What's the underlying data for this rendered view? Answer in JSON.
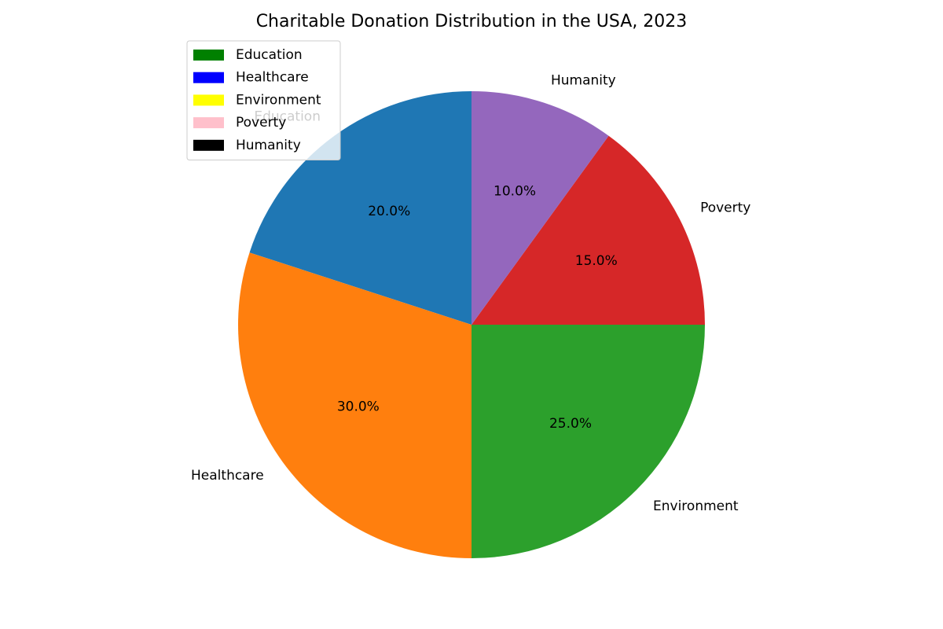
{
  "chart_data": {
    "type": "pie",
    "title": "Charitable Donation Distribution in the USA, 2023",
    "start_angle_deg": 90,
    "direction": "counterclockwise",
    "slices": [
      {
        "label": "Education",
        "value": 20,
        "pct_label": "20.0%",
        "color": "#1f77b4"
      },
      {
        "label": "Healthcare",
        "value": 30,
        "pct_label": "30.0%",
        "color": "#ff7f0e"
      },
      {
        "label": "Environment",
        "value": 25,
        "pct_label": "25.0%",
        "color": "#2ca02c"
      },
      {
        "label": "Poverty",
        "value": 15,
        "pct_label": "15.0%",
        "color": "#d62728"
      },
      {
        "label": "Humanity",
        "value": 10,
        "pct_label": "10.0%",
        "color": "#9467bd"
      }
    ],
    "legend": {
      "placement": "top-left",
      "entries": [
        {
          "label": "Education",
          "color": "#008000"
        },
        {
          "label": "Healthcare",
          "color": "#0000ff"
        },
        {
          "label": "Environment",
          "color": "#ffff00"
        },
        {
          "label": "Poverty",
          "color": "#ffc0cb"
        },
        {
          "label": "Humanity",
          "color": "#000000"
        }
      ]
    }
  }
}
